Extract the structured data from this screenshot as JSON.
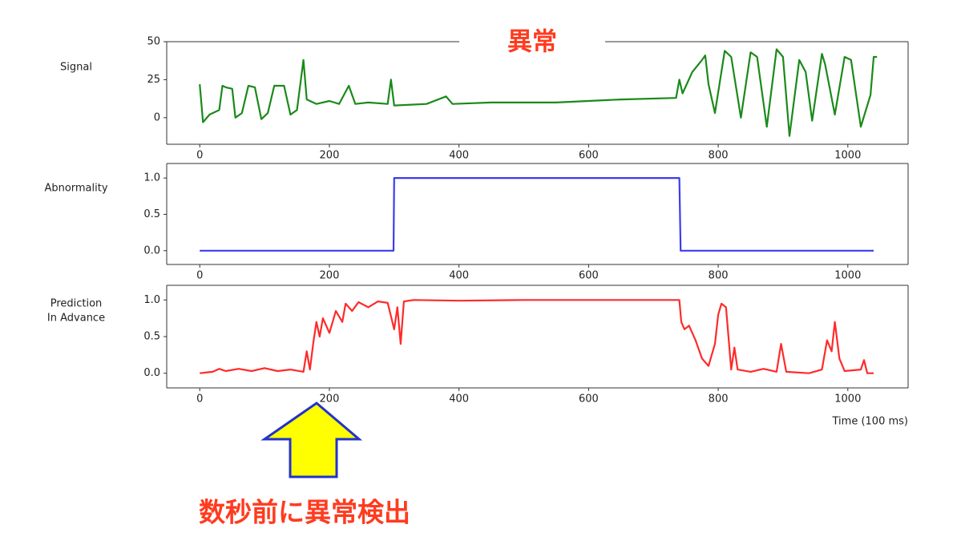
{
  "chart_data": [
    {
      "type": "line",
      "ylabel": [
        "Signal"
      ],
      "color": "#1a8a1a",
      "x": [
        0,
        5,
        15,
        30,
        35,
        40,
        50,
        55,
        65,
        75,
        85,
        95,
        105,
        115,
        130,
        140,
        150,
        160,
        165,
        180,
        200,
        215,
        230,
        240,
        260,
        290,
        295,
        300,
        350,
        380,
        390,
        450,
        550,
        650,
        735,
        740,
        745,
        760,
        775,
        780,
        785,
        795,
        810,
        820,
        835,
        850,
        860,
        875,
        890,
        900,
        910,
        925,
        935,
        945,
        960,
        965,
        980,
        995,
        1005,
        1020,
        1035,
        1040,
        1045
      ],
      "values": [
        22,
        -3,
        2,
        5,
        21,
        20,
        19,
        0,
        3,
        21,
        20,
        -1,
        3,
        21,
        21,
        2,
        5,
        38,
        12,
        9,
        11,
        9,
        21,
        9,
        10,
        9,
        25,
        8,
        9,
        14,
        9,
        10,
        10,
        12,
        13,
        25,
        16,
        30,
        38,
        41,
        22,
        3,
        44,
        40,
        0,
        43,
        40,
        -6,
        45,
        40,
        -12,
        38,
        30,
        -2,
        42,
        35,
        2,
        40,
        38,
        -6,
        15,
        40,
        40
      ],
      "xlim": [
        -51,
        1093
      ],
      "ylim": [
        -17.5,
        50
      ],
      "xticks": [
        0,
        200,
        400,
        600,
        800,
        1000
      ],
      "yticks": [
        0,
        25,
        50
      ]
    },
    {
      "type": "line",
      "ylabel": [
        "Abnormality"
      ],
      "color": "#3c3cf0",
      "x": [
        0,
        299,
        300,
        740,
        742,
        1040
      ],
      "values": [
        0,
        0,
        1,
        1,
        0,
        0
      ],
      "xlim": [
        -51,
        1093
      ],
      "ylim": [
        -0.19,
        1.2
      ],
      "xticks": [
        0,
        200,
        400,
        600,
        800,
        1000
      ],
      "yticks": [
        {
          "value": 0,
          "label": "0.0"
        },
        0.5,
        {
          "value": 1,
          "label": "1.0"
        }
      ]
    },
    {
      "type": "line",
      "ylabel": [
        "Prediction",
        "In Advance"
      ],
      "xlabel": "Time (100 ms)",
      "color": "#ff2a2a",
      "x": [
        0,
        20,
        30,
        40,
        60,
        80,
        100,
        120,
        140,
        160,
        165,
        170,
        175,
        180,
        185,
        190,
        200,
        210,
        220,
        225,
        235,
        245,
        260,
        275,
        290,
        300,
        305,
        310,
        315,
        330,
        400,
        500,
        740,
        743,
        748,
        755,
        765,
        775,
        785,
        795,
        800,
        805,
        812,
        820,
        825,
        830,
        850,
        870,
        890,
        897,
        905,
        940,
        960,
        968,
        975,
        980,
        987,
        995,
        1020,
        1025,
        1030,
        1040
      ],
      "values": [
        0,
        0.02,
        0.06,
        0.03,
        0.06,
        0.03,
        0.07,
        0.03,
        0.05,
        0.02,
        0.3,
        0.05,
        0.4,
        0.7,
        0.5,
        0.75,
        0.55,
        0.85,
        0.7,
        0.95,
        0.85,
        0.97,
        0.9,
        0.98,
        0.96,
        0.6,
        0.9,
        0.4,
        0.98,
        1,
        0.99,
        1,
        1,
        0.7,
        0.6,
        0.65,
        0.45,
        0.2,
        0.1,
        0.4,
        0.8,
        0.95,
        0.9,
        0.05,
        0.35,
        0.05,
        0.02,
        0.06,
        0.02,
        0.4,
        0.02,
        0,
        0.05,
        0.45,
        0.3,
        0.7,
        0.2,
        0.03,
        0.05,
        0.18,
        0,
        0
      ],
      "xlim": [
        -51,
        1093
      ],
      "ylim": [
        -0.2,
        1.2
      ],
      "xticks": [
        0,
        200,
        400,
        600,
        800,
        1000
      ],
      "yticks": [
        {
          "value": 0,
          "label": "0.0"
        },
        0.5,
        {
          "value": 1,
          "label": "1.0"
        }
      ]
    }
  ],
  "annotations": [
    "異常",
    "数秒前に異常検出"
  ]
}
